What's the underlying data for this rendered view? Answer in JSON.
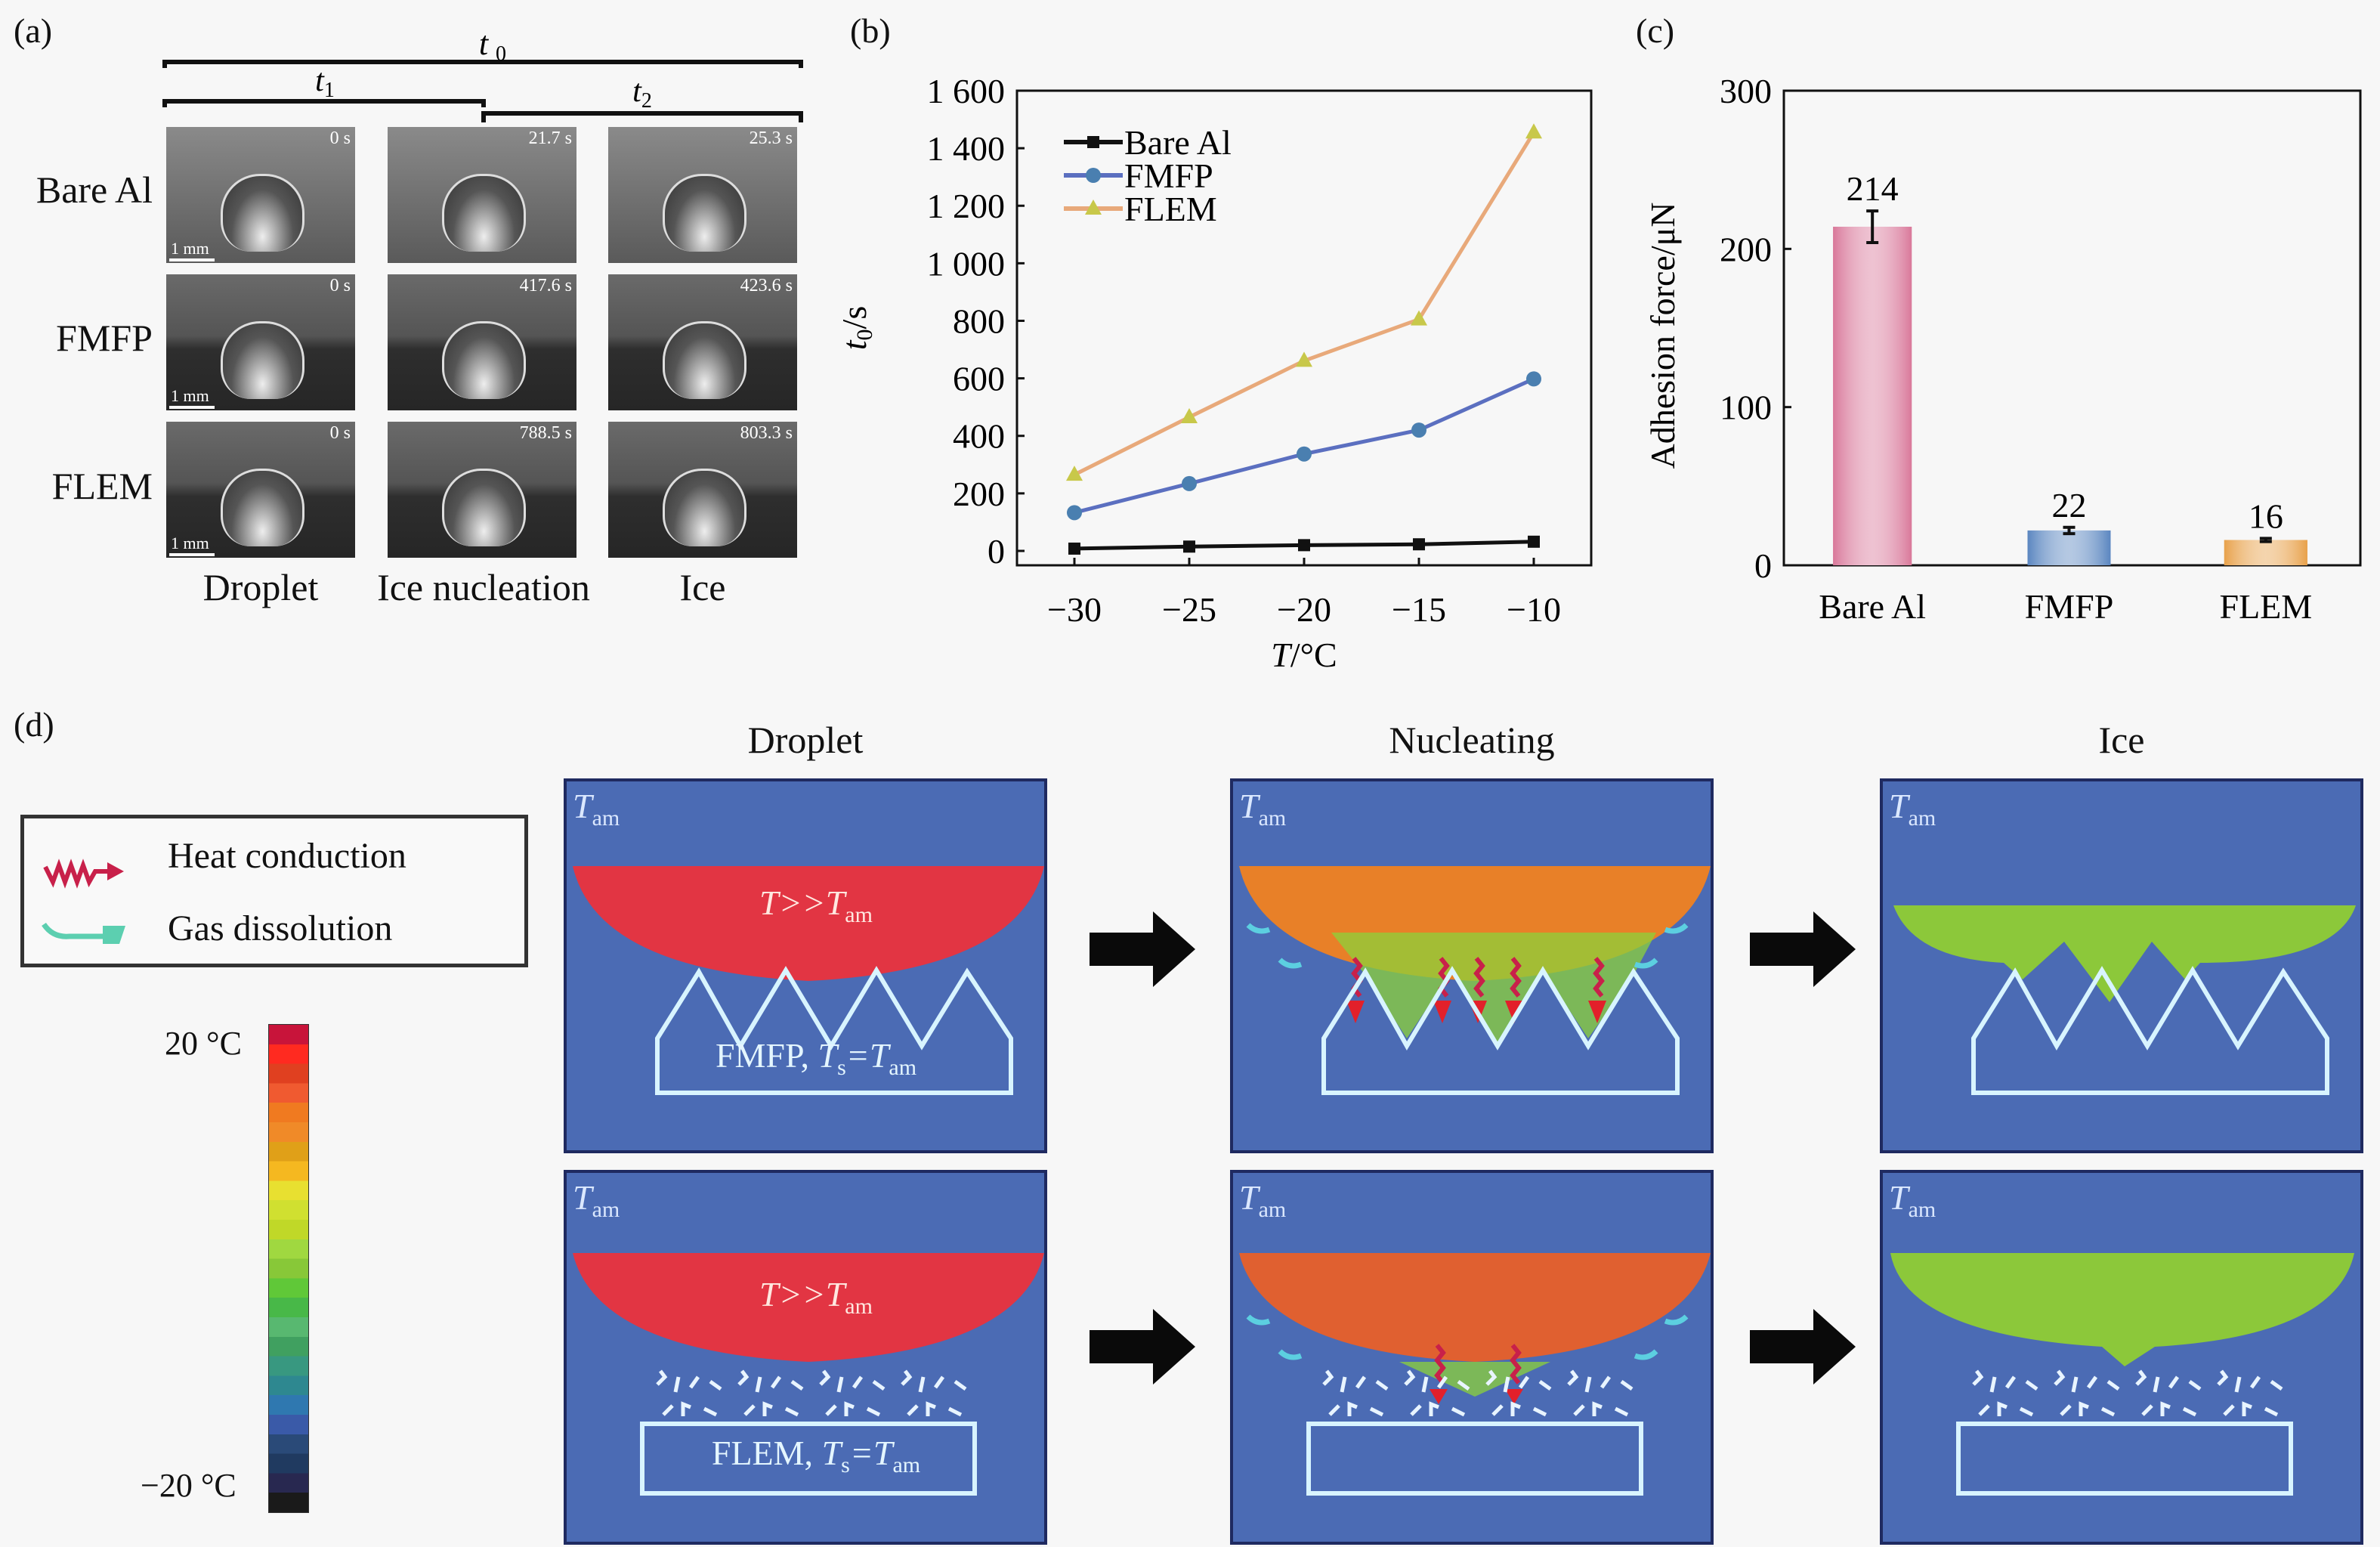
{
  "figure": {
    "panel_labels": {
      "a": "(a)",
      "b": "(b)",
      "c": "(c)",
      "d": "(d)"
    }
  },
  "panel_a": {
    "brackets": {
      "t0": "t0",
      "t1": "t1",
      "t2": "t2"
    },
    "row_labels": [
      "Bare Al",
      "FMFP",
      "FLEM"
    ],
    "column_labels": [
      "Droplet",
      "Ice nucleation",
      "Ice"
    ],
    "scale_bar_label": "1 mm",
    "timestamps": [
      [
        "0 s",
        "21.7 s",
        "25.3 s"
      ],
      [
        "0 s",
        "417.6 s",
        "423.6 s"
      ],
      [
        "0 s",
        "788.5 s",
        "803.3 s"
      ]
    ]
  },
  "chart_data": [
    {
      "type": "line",
      "panel": "(b)",
      "xlabel": "T/°C",
      "ylabel": "t0/s",
      "x": [
        -30,
        -25,
        -20,
        -15,
        -10
      ],
      "xlim": [
        -32.5,
        -7.5
      ],
      "ylim": [
        -50,
        1600
      ],
      "xticks": [
        "−30",
        "−25",
        "−20",
        "−15",
        "−10"
      ],
      "yticks": [
        {
          "value": 0,
          "label": "0"
        },
        {
          "value": 200,
          "label": "200"
        },
        {
          "value": 400,
          "label": "400"
        },
        {
          "value": 600,
          "label": "600"
        },
        {
          "value": 800,
          "label": "800"
        },
        {
          "value": 1000,
          "label": "1 000"
        },
        {
          "value": 1200,
          "label": "1 200"
        },
        {
          "value": 1400,
          "label": "1 400"
        },
        {
          "value": 1600,
          "label": "1 600"
        }
      ],
      "legend_position": "top-left",
      "grid": false,
      "series": [
        {
          "name": "Bare Al",
          "marker": "square",
          "color": "#111111",
          "values": [
            8,
            15,
            20,
            23,
            32
          ]
        },
        {
          "name": "FMFP",
          "marker": "circle",
          "color": "#5b6fc0",
          "marker_color": "#4a7fb0",
          "values": [
            133,
            234,
            337,
            420,
            598
          ]
        },
        {
          "name": "FLEM",
          "marker": "triangle",
          "color": "#e8a97a",
          "marker_color": "#c8c84a",
          "values": [
            265,
            465,
            661,
            805,
            1455
          ]
        }
      ]
    },
    {
      "type": "bar",
      "panel": "(c)",
      "categories": [
        "Bare Al",
        "FMFP",
        "FLEM"
      ],
      "values": [
        214,
        22,
        16
      ],
      "error": [
        10,
        2,
        1
      ],
      "data_labels": [
        "214",
        "22",
        "16"
      ],
      "ylabel": "Adhesion force/μN",
      "xlabel": "",
      "ylim": [
        0,
        300
      ],
      "yticks": [
        "0",
        "100",
        "200",
        "300"
      ],
      "colors": [
        "#d9789a",
        "#5a86c0",
        "#e8a14a"
      ],
      "grid": false
    }
  ],
  "panel_d": {
    "column_titles": [
      "Droplet",
      "Nucleating",
      "Ice"
    ],
    "ambient_label": {
      "main": "T",
      "sub": "am"
    },
    "legend": {
      "items": [
        {
          "label": "Heat conduction",
          "icon": "wavy-red-arrow-icon",
          "color": "#c8204a"
        },
        {
          "label": "Gas dissolution",
          "icon": "curved-teal-arrow-icon",
          "color": "#5ccfb0"
        }
      ]
    },
    "colorbar": {
      "max_label": "20 °C",
      "min_label": "−20 °C",
      "colors": [
        "#c8143a",
        "#ff2a20",
        "#e04020",
        "#f05a30",
        "#f07a20",
        "#f08a28",
        "#e0a018",
        "#f5b820",
        "#e8e030",
        "#d0e030",
        "#c0d828",
        "#a0d840",
        "#88c838",
        "#60c838",
        "#48b848",
        "#58b870",
        "#40a060",
        "#389880",
        "#2e8890",
        "#2f78b0",
        "#3a5aa8",
        "#2a4a78",
        "#203a60",
        "#282850",
        "#1a1a1a"
      ]
    },
    "rows": [
      {
        "droplet_label": {
          "main": "T>>T",
          "sub": "am"
        },
        "substrate_label": {
          "name": "FMFP, ",
          "ts": "T",
          "ts_sub": "s",
          "eq": "=T",
          "am": "am"
        }
      },
      {
        "droplet_label": {
          "main": "T>>T",
          "sub": "am"
        },
        "substrate_label": {
          "name": "FLEM, ",
          "ts": "T",
          "ts_sub": "s",
          "eq": "=T",
          "am": "am"
        }
      }
    ],
    "colors": {
      "background": "#4b6bb4",
      "hot": "#e23543",
      "nucleating": "#e88028",
      "ice": "#8cc83a",
      "outline": "#d8f4ff"
    }
  }
}
